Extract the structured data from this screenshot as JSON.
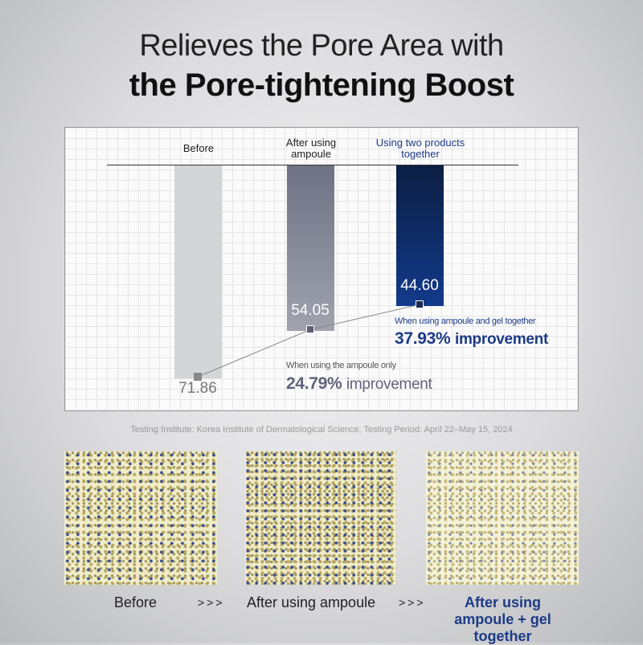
{
  "title_line1": "Relieves the Pore Area with",
  "title_line2": "the Pore-tightening Boost",
  "chart_data": {
    "type": "bar",
    "categories": [
      "Before",
      "After using ampoule",
      "Using two products together"
    ],
    "values": [
      71.86,
      54.05,
      44.6
    ],
    "value_labels": [
      "71.86",
      "54.05",
      "44.60"
    ],
    "colors": [
      "#d4d5d7",
      "#6e7284",
      "#0f2a66"
    ],
    "annotations": [
      {
        "note": "When using the ampoule only",
        "improvement": "24.79%",
        "improvement_word": "improvement"
      },
      {
        "note": "When using ampoule  and gel together",
        "improvement": "37.93%",
        "improvement_word": "improvement"
      }
    ]
  },
  "source": "Testing Institute: Korea Institute of Dermatological Science, Testing Period: April 22–May 15, 2024",
  "captions": [
    "Before",
    "After using ampoule",
    "After using ampoule + gel together"
  ],
  "arrows": [
    ">>>",
    ">>>"
  ]
}
